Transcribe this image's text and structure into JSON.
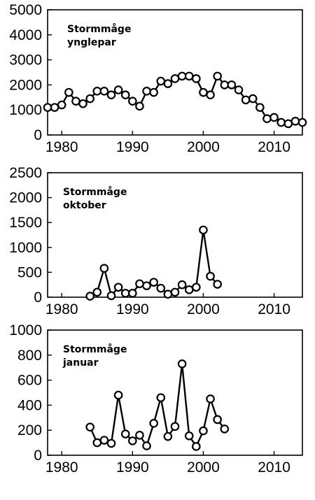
{
  "chart_data": [
    {
      "type": "line",
      "title_lines": [
        "Stormmåge",
        "ynglepar"
      ],
      "xlim": [
        1978,
        2014
      ],
      "ylim": [
        0,
        5000
      ],
      "x_ticks": [
        1980,
        1990,
        2000,
        2010
      ],
      "y_ticks": [
        0,
        1000,
        2000,
        3000,
        4000,
        5000
      ],
      "x": [
        1978,
        1979,
        1980,
        1981,
        1982,
        1983,
        1984,
        1985,
        1986,
        1987,
        1988,
        1989,
        1990,
        1991,
        1992,
        1993,
        1994,
        1995,
        1996,
        1997,
        1998,
        1999,
        2000,
        2001,
        2002,
        2003,
        2004,
        2005,
        2006,
        2007,
        2008,
        2009,
        2010,
        2011,
        2012,
        2013,
        2014
      ],
      "values": [
        1100,
        1100,
        1200,
        1700,
        1350,
        1250,
        1450,
        1750,
        1750,
        1600,
        1800,
        1600,
        1350,
        1150,
        1750,
        1700,
        2150,
        2050,
        2250,
        2350,
        2350,
        2250,
        1700,
        1600,
        2350,
        2000,
        2000,
        1800,
        1400,
        1450,
        1100,
        650,
        700,
        500,
        450,
        550,
        500
      ]
    },
    {
      "type": "line",
      "title_lines": [
        "Stormmåge",
        "oktober"
      ],
      "xlim": [
        1978,
        2014
      ],
      "ylim": [
        0,
        2500
      ],
      "x_ticks": [
        1980,
        1990,
        2000,
        2010
      ],
      "y_ticks": [
        0,
        500,
        1000,
        1500,
        2000,
        2500
      ],
      "x": [
        1984,
        1985,
        1986,
        1987,
        1988,
        1989,
        1990,
        1991,
        1992,
        1993,
        1994,
        1995,
        1996,
        1997,
        1998,
        1999,
        2000,
        2001,
        2002
      ],
      "values": [
        20,
        100,
        580,
        30,
        200,
        80,
        80,
        270,
        230,
        300,
        180,
        60,
        100,
        250,
        150,
        200,
        1350,
        420,
        260
      ]
    },
    {
      "type": "line",
      "title_lines": [
        "Stormmåge",
        "januar"
      ],
      "xlim": [
        1978,
        2014
      ],
      "ylim": [
        0,
        1000
      ],
      "x_ticks": [
        1980,
        1990,
        2000,
        2010
      ],
      "y_ticks": [
        0,
        200,
        400,
        600,
        800,
        1000
      ],
      "x": [
        1984,
        1985,
        1986,
        1987,
        1988,
        1989,
        1990,
        1991,
        1992,
        1993,
        1994,
        1995,
        1996,
        1997,
        1998,
        1999,
        2000,
        2001,
        2002,
        2003
      ],
      "values": [
        225,
        100,
        120,
        95,
        480,
        170,
        115,
        160,
        75,
        255,
        460,
        150,
        230,
        730,
        155,
        70,
        195,
        450,
        285,
        210
      ]
    }
  ]
}
